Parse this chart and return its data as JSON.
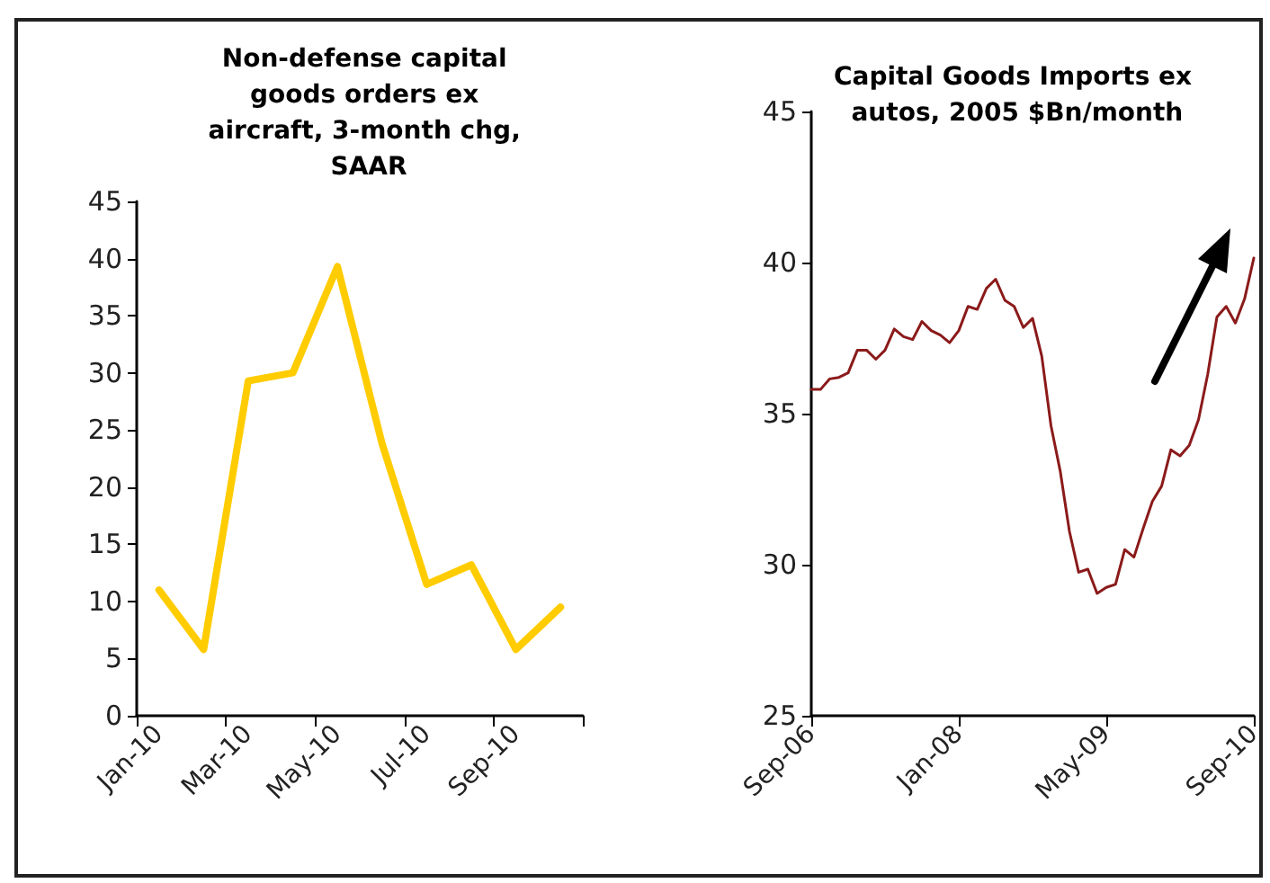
{
  "chart_data": [
    {
      "type": "line",
      "title": "Non-defense capital goods orders ex aircraft, 3-month chg, SAAR",
      "categories": [
        "Jan-10",
        null,
        "Mar-10",
        null,
        "May-10",
        null,
        "Jul-10",
        null,
        "Sep-10",
        null
      ],
      "series": [
        {
          "color": "#ffcc00",
          "values": [
            11,
            5.8,
            29.3,
            30,
            39.3,
            23.8,
            11.5,
            13.2,
            5.8,
            9.5
          ]
        }
      ],
      "ylim": [
        0,
        45
      ],
      "yticks": [
        0,
        5,
        10,
        15,
        20,
        25,
        30,
        35,
        40,
        45
      ],
      "grid": false,
      "marker": "none",
      "line_style": "solid"
    },
    {
      "type": "line",
      "title": "Capital Goods Imports ex autos, 2005 $Bn/month",
      "categories": [
        "Sep-06",
        null,
        null,
        null,
        null,
        null,
        null,
        null,
        null,
        null,
        null,
        null,
        null,
        null,
        null,
        null,
        "Jan-08",
        null,
        null,
        null,
        null,
        null,
        null,
        null,
        null,
        null,
        null,
        null,
        null,
        null,
        null,
        null,
        "May-09",
        null,
        null,
        null,
        null,
        null,
        null,
        null,
        null,
        null,
        null,
        null,
        null,
        null,
        null,
        null,
        "Sep-10"
      ],
      "series": [
        {
          "color": "#8b1a1a",
          "values": [
            35.8,
            35.8,
            36.15,
            36.2,
            36.35,
            37.1,
            37.1,
            36.8,
            37.1,
            37.8,
            37.55,
            37.45,
            38.05,
            37.75,
            37.6,
            37.35,
            37.75,
            38.55,
            38.45,
            39.15,
            39.45,
            38.75,
            38.55,
            37.85,
            38.15,
            36.9,
            34.6,
            33.1,
            31.1,
            29.75,
            29.85,
            29.05,
            29.25,
            29.35,
            30.5,
            30.25,
            31.2,
            32.1,
            32.6,
            33.8,
            33.6,
            33.95,
            34.8,
            36.3,
            38.2,
            38.55,
            38.0,
            38.8,
            40.15
          ]
        }
      ],
      "ylim": [
        25,
        45
      ],
      "yticks": [
        25,
        30,
        35,
        40,
        45
      ],
      "grid": false,
      "marker": "none",
      "line_style": "solid"
    }
  ]
}
